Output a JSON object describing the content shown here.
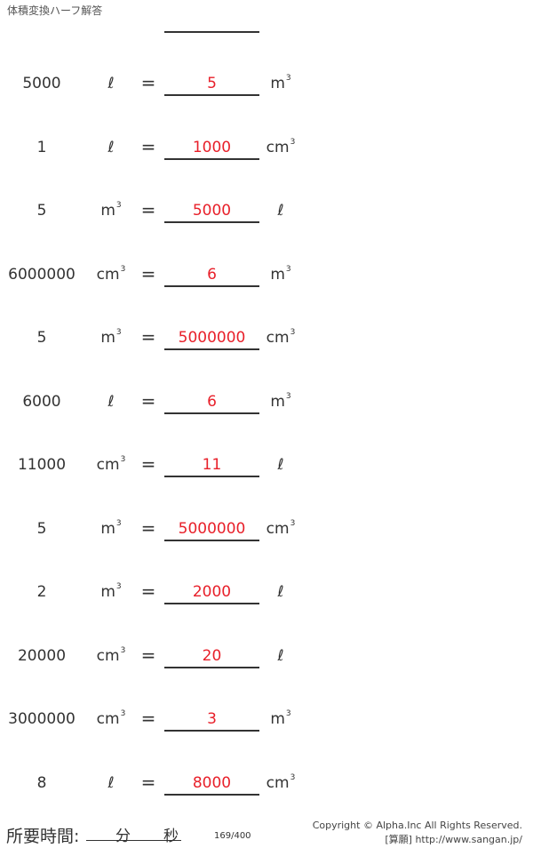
{
  "title": "体積変換ハーフ解答",
  "problems": [
    {
      "value": "5000",
      "unit": "ℓ",
      "answer": "5",
      "result_unit": "m",
      "result_sup": "3",
      "unit_sup": ""
    },
    {
      "value": "1",
      "unit": "ℓ",
      "answer": "1000",
      "result_unit": "cm",
      "result_sup": "3",
      "unit_sup": ""
    },
    {
      "value": "5",
      "unit": "m",
      "unit_sup": "3",
      "answer": "5000",
      "result_unit": "ℓ",
      "result_sup": ""
    },
    {
      "value": "6000000",
      "unit": "cm",
      "unit_sup": "3",
      "answer": "6",
      "result_unit": "m",
      "result_sup": "3"
    },
    {
      "value": "5",
      "unit": "m",
      "unit_sup": "3",
      "answer": "5000000",
      "result_unit": "cm",
      "result_sup": "3"
    },
    {
      "value": "6000",
      "unit": "ℓ",
      "unit_sup": "",
      "answer": "6",
      "result_unit": "m",
      "result_sup": "3"
    },
    {
      "value": "11000",
      "unit": "cm",
      "unit_sup": "3",
      "answer": "11",
      "result_unit": "ℓ",
      "result_sup": ""
    },
    {
      "value": "5",
      "unit": "m",
      "unit_sup": "3",
      "answer": "5000000",
      "result_unit": "cm",
      "result_sup": "3"
    },
    {
      "value": "2",
      "unit": "m",
      "unit_sup": "3",
      "answer": "2000",
      "result_unit": "ℓ",
      "result_sup": ""
    },
    {
      "value": "20000",
      "unit": "cm",
      "unit_sup": "3",
      "answer": "20",
      "result_unit": "ℓ",
      "result_sup": ""
    },
    {
      "value": "3000000",
      "unit": "cm",
      "unit_sup": "3",
      "answer": "3",
      "result_unit": "m",
      "result_sup": "3"
    },
    {
      "value": "8",
      "unit": "ℓ",
      "unit_sup": "",
      "answer": "8000",
      "result_unit": "cm",
      "result_sup": "3"
    }
  ],
  "equals": "=",
  "footer": {
    "time_label": "所要時間:",
    "minutes": "分",
    "seconds": "秒",
    "page": "169/400",
    "copyright": "Copyright © Alpha.Inc All Rights Reserved.",
    "site": "[算願] http://www.sangan.jp/"
  },
  "colors": {
    "answer": "#e8202a"
  }
}
